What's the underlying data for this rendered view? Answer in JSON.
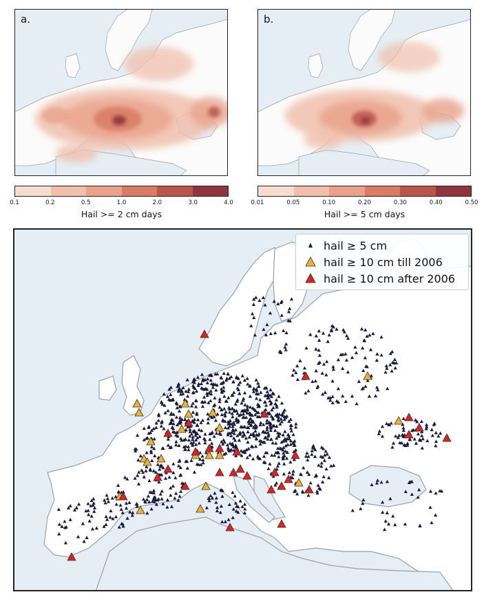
{
  "panels": [
    {
      "letter": "a.",
      "colorbar_label": "Hail >= 2 cm days",
      "ticks": [
        "0.1",
        "0.2",
        "0.5",
        "1.0",
        "2.0",
        "3.0",
        "4.0"
      ],
      "colors": [
        "#f7dcd2",
        "#f1c0ad",
        "#e9a38c",
        "#da7c65",
        "#b9554d",
        "#8e3540"
      ]
    },
    {
      "letter": "b.",
      "colorbar_label": "Hail >= 5 cm days",
      "ticks": [
        "0.01",
        "0.05",
        "0.10",
        "0.20",
        "0.30",
        "0.40",
        "0.50"
      ],
      "colors": [
        "#f7dcd2",
        "#f1c0ad",
        "#e9a38c",
        "#da7c65",
        "#b9554d",
        "#8e3540"
      ]
    }
  ],
  "legend": [
    {
      "label": "hail ≥ 5 cm",
      "marker": "triangle",
      "color": "#1a1a3d"
    },
    {
      "label": "hail ≥ 10 cm till 2006",
      "marker": "triangle",
      "color": "#f0b030"
    },
    {
      "label": "hail ≥ 10 cm after 2006",
      "marker": "triangle",
      "color": "#e02020"
    }
  ],
  "colors": {
    "sea": "#e5eef4",
    "land": "#ffffff",
    "coast": "#9aa0a6"
  }
}
